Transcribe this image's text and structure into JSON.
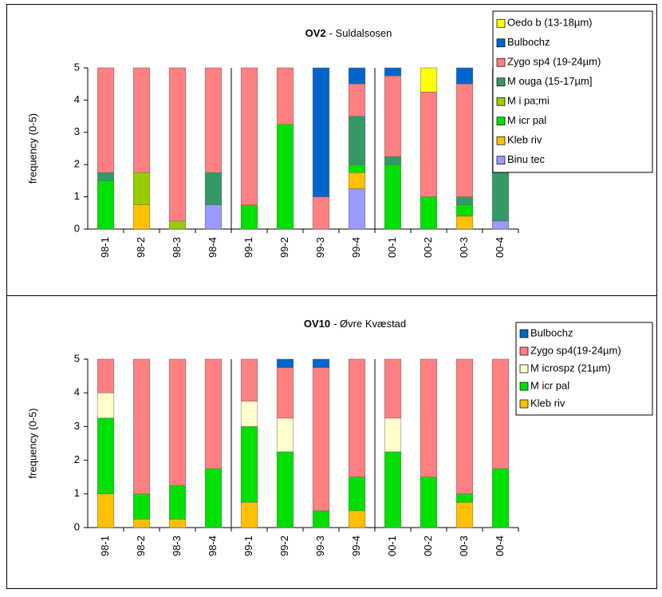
{
  "chart_data": [
    {
      "type": "stacked_bar",
      "title": [
        "OV2",
        "- Suldalsosen"
      ],
      "y_label": "frequency (0-5)",
      "categories": [
        "98-1",
        "98-2",
        "98-3",
        "98-4",
        "99-1",
        "99-2",
        "99-3",
        "99-4",
        "00-1",
        "00-2",
        "00-3",
        "00-4"
      ],
      "ylim": [
        0,
        5
      ],
      "yticks": [
        0,
        1,
        2,
        3,
        4,
        5
      ],
      "series": [
        {
          "name": "Oedo b (13-18µm)",
          "color": "#ffff00",
          "values": [
            0,
            0,
            0,
            0,
            0,
            0,
            0,
            0,
            0,
            0.75,
            0,
            0
          ]
        },
        {
          "name": "Bulbochz",
          "color": "#0066cc",
          "values": [
            0,
            0,
            0,
            0,
            0,
            0,
            4,
            0.5,
            0.25,
            0,
            0.5,
            0
          ]
        },
        {
          "name": "Zygo sp4 (19-24µm)",
          "color": "#ff8080",
          "values": [
            3.25,
            3.25,
            4.75,
            3.25,
            4.25,
            1.75,
            1,
            1,
            2.5,
            3.25,
            3.5,
            3
          ]
        },
        {
          "name": "M ouga (15-17µm]",
          "color": "#339966",
          "values": [
            0.25,
            0,
            0,
            1,
            0,
            0,
            0,
            1.5,
            0.25,
            0,
            0.25,
            1.75
          ]
        },
        {
          "name": "M i pa;mi",
          "color": "#99cc00",
          "values": [
            0,
            1,
            0.25,
            0,
            0,
            0,
            0,
            0,
            0,
            0,
            0,
            0
          ]
        },
        {
          "name": "M icr pal",
          "color": "#00e000",
          "values": [
            1.5,
            0,
            0,
            0,
            0.75,
            3.25,
            0,
            0.25,
            2,
            1,
            0.35,
            0
          ]
        },
        {
          "name": "Kleb riv",
          "color": "#ffc000",
          "values": [
            0,
            0.75,
            0,
            0,
            0,
            0,
            0,
            0.5,
            0,
            0,
            0.4,
            0
          ]
        },
        {
          "name": "Binu tec",
          "color": "#9999ff",
          "values": [
            0,
            0,
            0,
            0.75,
            0,
            0,
            0,
            1.25,
            0,
            0,
            0,
            0.25
          ]
        }
      ]
    },
    {
      "type": "stacked_bar",
      "title": [
        "OV10",
        "- Øvre Kvæstad"
      ],
      "y_label": "frequency (0-5)",
      "categories": [
        "98-1",
        "98-2",
        "98-3",
        "98-4",
        "99-1",
        "99-2",
        "99-3",
        "99-4",
        "00-1",
        "00-2",
        "00-3",
        "00-4"
      ],
      "ylim": [
        0,
        5
      ],
      "yticks": [
        0,
        1,
        2,
        3,
        4,
        5
      ],
      "series": [
        {
          "name": "Bulbochz",
          "color": "#0066cc",
          "values": [
            0,
            0,
            0,
            0,
            0,
            0.25,
            0.25,
            0,
            0,
            0,
            0,
            0
          ]
        },
        {
          "name": "Zygo sp4(19-24µm)",
          "color": "#ff8080",
          "values": [
            1,
            4,
            3.75,
            3.25,
            1.25,
            1.5,
            4.25,
            3.5,
            1.75,
            3.5,
            4,
            3.25
          ]
        },
        {
          "name": "M icrospz (21µm)",
          "color": "#ffffcc",
          "values": [
            0.75,
            0,
            0,
            0,
            0.75,
            1,
            0,
            0,
            1,
            0,
            0,
            0
          ]
        },
        {
          "name": "M icr pal",
          "color": "#00e000",
          "values": [
            2.25,
            0.75,
            1,
            1.75,
            2.25,
            2.25,
            0.5,
            1,
            2.25,
            1.5,
            0.25,
            1.75
          ]
        },
        {
          "name": "Kleb riv",
          "color": "#ffc000",
          "values": [
            1,
            0.25,
            0.25,
            0,
            0.75,
            0,
            0,
            0.5,
            0,
            0,
            0.75,
            0
          ]
        }
      ]
    }
  ]
}
